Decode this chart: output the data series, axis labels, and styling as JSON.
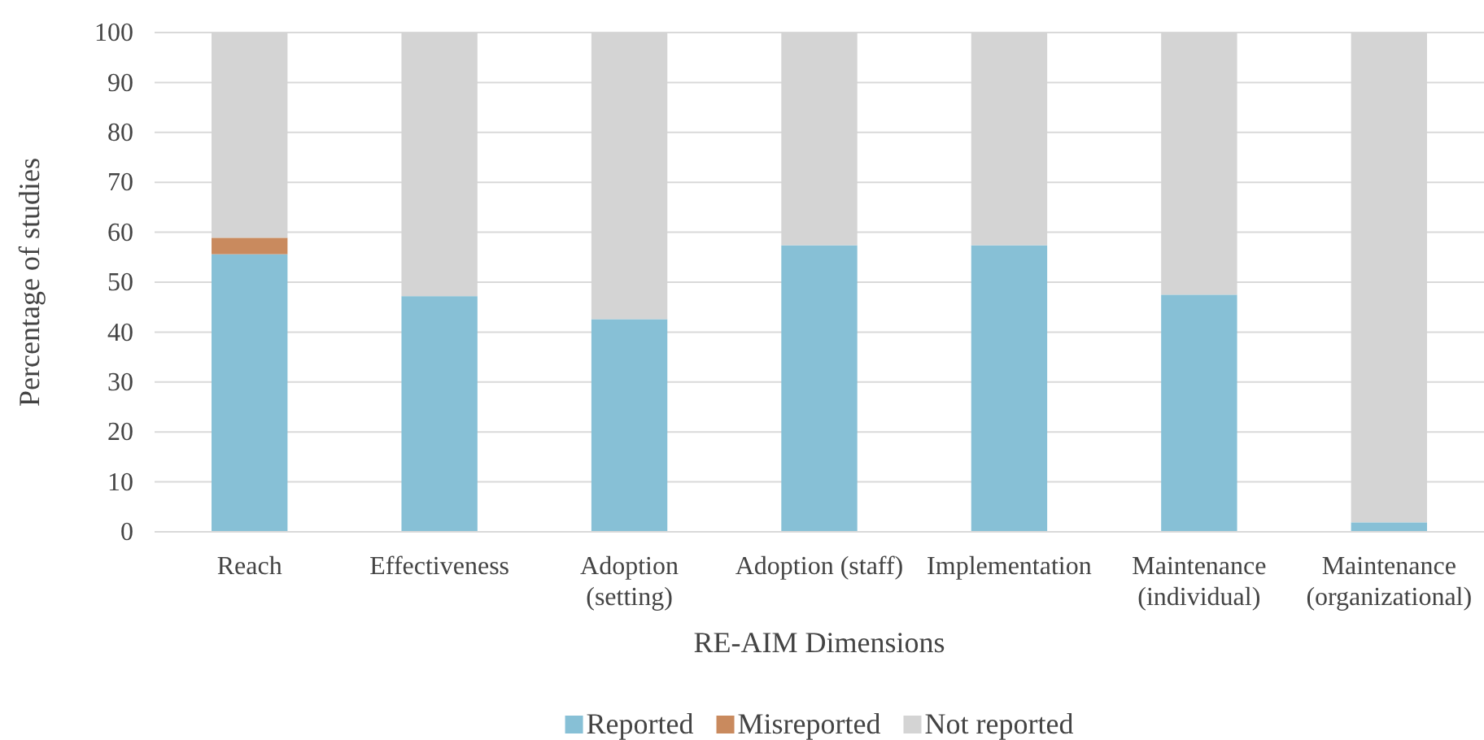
{
  "chart_data": {
    "type": "bar",
    "stacked": true,
    "xlabel": "RE-AIM Dimensions",
    "ylabel": "Percentage of studies",
    "categories": [
      "Reach",
      "Effectiveness",
      "Adoption (setting)",
      "Adoption (staff)",
      "Implementation",
      "Maintenance (individual)",
      "Maintenance (organizational)"
    ],
    "series": [
      {
        "name": "Reported",
        "color": "#87c0d6",
        "values": [
          55.6,
          47.2,
          42.6,
          57.4,
          57.4,
          47.5,
          1.9
        ]
      },
      {
        "name": "Misreported",
        "color": "#c98a5e",
        "values": [
          3.3,
          0,
          0,
          0,
          0,
          0,
          0
        ]
      },
      {
        "name": "Not reported",
        "color": "#d4d4d4",
        "values": [
          41.1,
          52.8,
          57.4,
          42.6,
          42.6,
          52.5,
          98.1
        ]
      }
    ],
    "ylim": [
      0,
      100
    ],
    "yticks": [
      0,
      10,
      20,
      30,
      40,
      50,
      60,
      70,
      80,
      90,
      100
    ],
    "grid": "y",
    "legend": "bottom"
  }
}
